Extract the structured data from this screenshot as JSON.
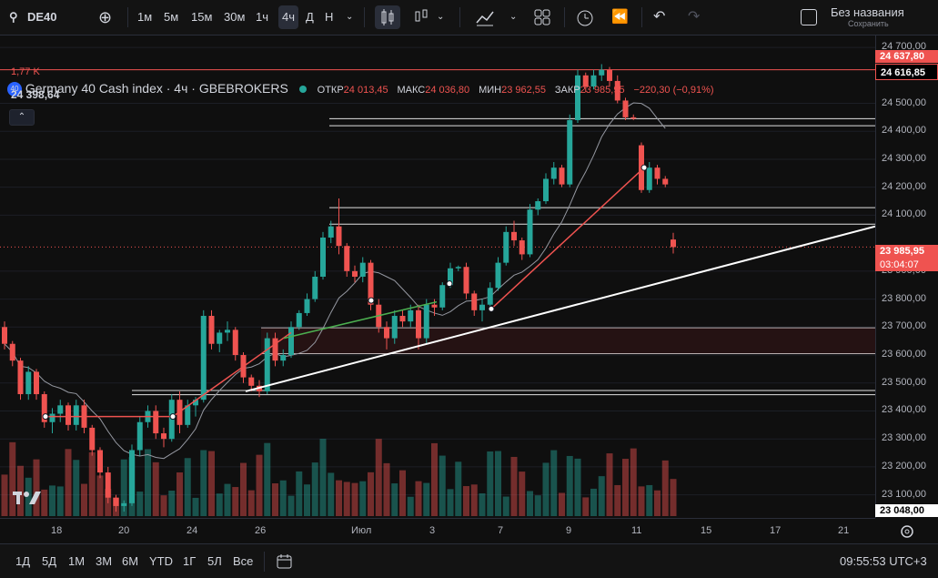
{
  "toolbar": {
    "symbol": "DE40",
    "timeframes": [
      "1м",
      "5м",
      "15м",
      "30м",
      "1ч",
      "4ч",
      "Д",
      "Н"
    ],
    "active_timeframe": "4ч",
    "layout_name": "Без названия",
    "saved_status": "Сохранить"
  },
  "legend": {
    "badge": "40",
    "instrument": "Germany 40 Cash index · 4ч · GBEBROKERS",
    "open_label": "ОТКР",
    "open": "24 013,45",
    "high_label": "МАКС",
    "high": "24 036,80",
    "low_label": "МИН",
    "low": "23 962,55",
    "close_label": "ЗАКР",
    "close": "23 985,95",
    "change": "−220,30 (−0,91%)",
    "volume": "1,77 K",
    "indicator_value": "24 398,64"
  },
  "y_axis": {
    "ticks": [
      "24 700,00",
      "24 500,00",
      "24 400,00",
      "24 300,00",
      "24 200,00",
      "24 100,00",
      "23 900,00",
      "23 800,00",
      "23 700,00",
      "23 600,00",
      "23 500,00",
      "23 400,00",
      "23 300,00",
      "23 200,00",
      "23 100,00"
    ],
    "tags": {
      "high_tag": "24 637,80",
      "level_tag": "24 616,85",
      "last_price": "23 985,95",
      "countdown": "03:04:07",
      "low_tag": "23 048,00"
    }
  },
  "x_axis": {
    "labels": [
      "18",
      "20",
      "24",
      "26",
      "Июл",
      "3",
      "7",
      "9",
      "11",
      "15",
      "17",
      "21"
    ]
  },
  "bottom": {
    "ranges": [
      "1Д",
      "5Д",
      "1М",
      "3М",
      "6М",
      "YTD",
      "1Г",
      "5Л",
      "Все"
    ],
    "clock": "09:55:53 UTC+3"
  },
  "colors": {
    "up": "#26a69a",
    "down": "#ef5350",
    "background": "#0f0f0f",
    "accent": "#2962ff"
  },
  "chart_data": {
    "type": "candlestick",
    "price_range": [
      23050,
      24710
    ],
    "candles": [
      [
        23700,
        23720,
        23620,
        23640
      ],
      [
        23640,
        23650,
        23560,
        23580
      ],
      [
        23580,
        23590,
        23440,
        23460
      ],
      [
        23460,
        23560,
        23440,
        23540
      ],
      [
        23540,
        23550,
        23440,
        23460
      ],
      [
        23460,
        23470,
        23340,
        23360
      ],
      [
        23360,
        23410,
        23320,
        23390
      ],
      [
        23390,
        23440,
        23360,
        23420
      ],
      [
        23420,
        23430,
        23330,
        23350
      ],
      [
        23350,
        23440,
        23330,
        23420
      ],
      [
        23420,
        23440,
        23320,
        23340
      ],
      [
        23340,
        23350,
        23240,
        23260
      ],
      [
        23260,
        23270,
        23160,
        23180
      ],
      [
        23180,
        23200,
        23070,
        23090
      ],
      [
        23090,
        23100,
        23040,
        23060
      ],
      [
        23060,
        23080,
        23040,
        23070
      ],
      [
        23070,
        23280,
        23060,
        23260
      ],
      [
        23260,
        23380,
        23240,
        23360
      ],
      [
        23360,
        23420,
        23340,
        23400
      ],
      [
        23400,
        23420,
        23300,
        23320
      ],
      [
        23320,
        23340,
        23270,
        23300
      ],
      [
        23300,
        23460,
        23290,
        23440
      ],
      [
        23440,
        23470,
        23320,
        23350
      ],
      [
        23350,
        23440,
        23340,
        23420
      ],
      [
        23420,
        23450,
        23380,
        23440
      ],
      [
        23440,
        23760,
        23430,
        23740
      ],
      [
        23740,
        23760,
        23620,
        23640
      ],
      [
        23640,
        23690,
        23610,
        23680
      ],
      [
        23680,
        23720,
        23650,
        23690
      ],
      [
        23690,
        23700,
        23580,
        23600
      ],
      [
        23600,
        23610,
        23500,
        23520
      ],
      [
        23520,
        23530,
        23470,
        23490
      ],
      [
        23490,
        23510,
        23450,
        23470
      ],
      [
        23470,
        23680,
        23460,
        23660
      ],
      [
        23660,
        23680,
        23560,
        23580
      ],
      [
        23580,
        23620,
        23560,
        23600
      ],
      [
        23600,
        23720,
        23590,
        23700
      ],
      [
        23700,
        23760,
        23690,
        23750
      ],
      [
        23750,
        23820,
        23740,
        23800
      ],
      [
        23800,
        23900,
        23790,
        23880
      ],
      [
        23880,
        24040,
        23870,
        24020
      ],
      [
        24020,
        24080,
        24000,
        24060
      ],
      [
        24060,
        24160,
        23960,
        23990
      ],
      [
        23990,
        24000,
        23880,
        23900
      ],
      [
        23900,
        23920,
        23860,
        23880
      ],
      [
        23880,
        23950,
        23860,
        23930
      ],
      [
        23930,
        23940,
        23760,
        23780
      ],
      [
        23780,
        23800,
        23680,
        23700
      ],
      [
        23700,
        23720,
        23620,
        23660
      ],
      [
        23660,
        23760,
        23640,
        23740
      ],
      [
        23740,
        23760,
        23700,
        23720
      ],
      [
        23720,
        23780,
        23700,
        23760
      ],
      [
        23760,
        23780,
        23620,
        23660
      ],
      [
        23660,
        23800,
        23640,
        23780
      ],
      [
        23780,
        23800,
        23740,
        23770
      ],
      [
        23770,
        23860,
        23760,
        23850
      ],
      [
        23850,
        23930,
        23840,
        23910
      ],
      [
        23910,
        23920,
        23900,
        23915
      ],
      [
        23915,
        23930,
        23800,
        23820
      ],
      [
        23820,
        23830,
        23740,
        23760
      ],
      [
        23760,
        23800,
        23720,
        23780
      ],
      [
        23780,
        23860,
        23770,
        23840
      ],
      [
        23840,
        23950,
        23830,
        23930
      ],
      [
        23930,
        24060,
        23920,
        24040
      ],
      [
        24040,
        24080,
        23990,
        24010
      ],
      [
        24010,
        24020,
        23940,
        23960
      ],
      [
        23960,
        24140,
        23950,
        24120
      ],
      [
        24120,
        24160,
        24100,
        24150
      ],
      [
        24150,
        24250,
        24140,
        24230
      ],
      [
        24230,
        24290,
        24210,
        24270
      ],
      [
        24270,
        24280,
        24200,
        24210
      ],
      [
        24210,
        24460,
        24200,
        24440
      ],
      [
        24440,
        24620,
        24430,
        24600
      ],
      [
        24600,
        24610,
        24540,
        24560
      ],
      [
        24560,
        24620,
        24550,
        24600
      ],
      [
        24600,
        24640,
        24580,
        24620
      ],
      [
        24620,
        24630,
        24560,
        24580
      ],
      [
        24580,
        24600,
        24500,
        24510
      ],
      [
        24510,
        24520,
        24440,
        24450
      ],
      [
        24450,
        24460,
        24440,
        24445
      ],
      [
        24350,
        24360,
        24180,
        24190
      ],
      [
        24190,
        24290,
        24180,
        24270
      ],
      [
        24270,
        24280,
        24210,
        24230
      ],
      [
        24230,
        24240,
        24200,
        24210
      ],
      [
        24013,
        24037,
        23963,
        23986
      ]
    ]
  }
}
